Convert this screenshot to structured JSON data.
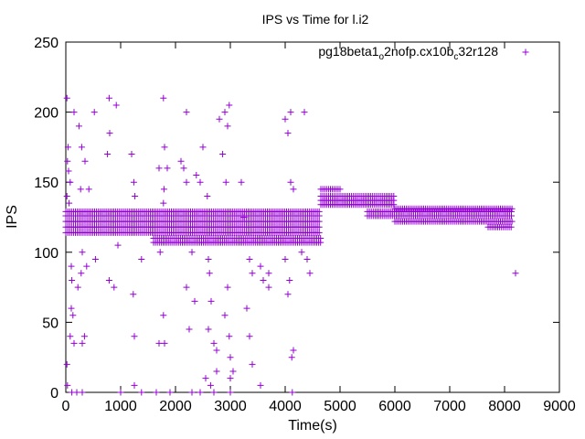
{
  "chart_data": {
    "type": "scatter",
    "title": "IPS vs Time for l.i2",
    "xlabel": "Time(s)",
    "ylabel": "IPS",
    "xlim": [
      0,
      9000
    ],
    "ylim": [
      0,
      250
    ],
    "xticks": [
      0,
      1000,
      2000,
      3000,
      4000,
      5000,
      6000,
      7000,
      8000,
      9000
    ],
    "yticks": [
      0,
      50,
      100,
      150,
      200,
      250
    ],
    "grid": false,
    "legend_position": "top-right",
    "marker": "plus",
    "series": [
      {
        "name_parts": {
          "base": "pg18beta1",
          "sub1": "o",
          "mid": "2nofp.cx10b",
          "sub2": "c",
          "end": "32r128"
        },
        "color": "#9400d3",
        "dense_bands": [
          {
            "x_start": 0,
            "x_end": 4650,
            "y_values": [
              114,
              118,
              122,
              126,
              129
            ]
          },
          {
            "x_start": 1600,
            "x_end": 4650,
            "y_values": [
              107,
              110
            ]
          },
          {
            "x_start": 4650,
            "x_end": 5000,
            "y_values": [
              140,
              145
            ]
          },
          {
            "x_start": 4650,
            "x_end": 6000,
            "y_values": [
              134,
              137
            ]
          },
          {
            "x_start": 5000,
            "x_end": 6000,
            "y_values": [
              140
            ]
          },
          {
            "x_start": 5500,
            "x_end": 8150,
            "y_values": [
              126,
              129
            ]
          },
          {
            "x_start": 6000,
            "x_end": 8150,
            "y_values": [
              122,
              131
            ]
          },
          {
            "x_start": 7700,
            "x_end": 8150,
            "y_values": [
              118
            ]
          }
        ],
        "points": [
          [
            20,
            210
          ],
          [
            40,
            175
          ],
          [
            30,
            165
          ],
          [
            50,
            158
          ],
          [
            80,
            150
          ],
          [
            20,
            140
          ],
          [
            60,
            135
          ],
          [
            100,
            90
          ],
          [
            110,
            80
          ],
          [
            100,
            60
          ],
          [
            130,
            55
          ],
          [
            80,
            40
          ],
          [
            150,
            35
          ],
          [
            20,
            20
          ],
          [
            30,
            5
          ],
          [
            110,
            0
          ],
          [
            200,
            0
          ],
          [
            300,
            0
          ],
          [
            150,
            200
          ],
          [
            240,
            190
          ],
          [
            290,
            175
          ],
          [
            350,
            165
          ],
          [
            270,
            145
          ],
          [
            420,
            145
          ],
          [
            300,
            100
          ],
          [
            220,
            75
          ],
          [
            280,
            85
          ],
          [
            380,
            90
          ],
          [
            340,
            40
          ],
          [
            300,
            35
          ],
          [
            520,
            200
          ],
          [
            540,
            95
          ],
          [
            790,
            210
          ],
          [
            800,
            185
          ],
          [
            920,
            205
          ],
          [
            760,
            170
          ],
          [
            950,
            105
          ],
          [
            790,
            80
          ],
          [
            880,
            75
          ],
          [
            1000,
            0
          ],
          [
            1200,
            170
          ],
          [
            1240,
            150
          ],
          [
            1260,
            140
          ],
          [
            1230,
            70
          ],
          [
            1250,
            40
          ],
          [
            1250,
            5
          ],
          [
            1380,
            95
          ],
          [
            1380,
            0
          ],
          [
            1700,
            160
          ],
          [
            1780,
            210
          ],
          [
            1800,
            175
          ],
          [
            1850,
            160
          ],
          [
            1790,
            145
          ],
          [
            1780,
            135
          ],
          [
            1720,
            100
          ],
          [
            1780,
            55
          ],
          [
            1700,
            35
          ],
          [
            1800,
            35
          ],
          [
            1650,
            0
          ],
          [
            1900,
            0
          ],
          [
            2100,
            165
          ],
          [
            2150,
            160
          ],
          [
            2200,
            200
          ],
          [
            2200,
            150
          ],
          [
            2300,
            100
          ],
          [
            2200,
            75
          ],
          [
            2250,
            45
          ],
          [
            2350,
            65
          ],
          [
            2300,
            0
          ],
          [
            2450,
            0
          ],
          [
            2380,
            155
          ],
          [
            2500,
            175
          ],
          [
            2450,
            150
          ],
          [
            2580,
            140
          ],
          [
            2600,
            95
          ],
          [
            2620,
            85
          ],
          [
            2650,
            65
          ],
          [
            2600,
            45
          ],
          [
            2700,
            35
          ],
          [
            2750,
            15
          ],
          [
            2640,
            5
          ],
          [
            2700,
            0
          ],
          [
            2550,
            10
          ],
          [
            2750,
            30
          ],
          [
            2800,
            195
          ],
          [
            2900,
            200
          ],
          [
            2950,
            190
          ],
          [
            2980,
            205
          ],
          [
            2860,
            170
          ],
          [
            2920,
            150
          ],
          [
            2950,
            75
          ],
          [
            2900,
            55
          ],
          [
            2980,
            40
          ],
          [
            3000,
            25
          ],
          [
            3050,
            15
          ],
          [
            3000,
            10
          ],
          [
            3000,
            0
          ],
          [
            3200,
            150
          ],
          [
            3250,
            125
          ],
          [
            3350,
            95
          ],
          [
            3400,
            85
          ],
          [
            3300,
            60
          ],
          [
            3350,
            40
          ],
          [
            3400,
            20
          ],
          [
            3550,
            90
          ],
          [
            3600,
            80
          ],
          [
            3550,
            5
          ],
          [
            3700,
            85
          ],
          [
            3700,
            75
          ],
          [
            4000,
            195
          ],
          [
            4100,
            200
          ],
          [
            4050,
            185
          ],
          [
            4100,
            150
          ],
          [
            4150,
            145
          ],
          [
            4000,
            95
          ],
          [
            4080,
            80
          ],
          [
            4050,
            70
          ],
          [
            4150,
            30
          ],
          [
            4120,
            25
          ],
          [
            4130,
            0
          ],
          [
            4350,
            200
          ],
          [
            4300,
            100
          ],
          [
            4400,
            95
          ],
          [
            4450,
            85
          ],
          [
            8200,
            85
          ]
        ]
      }
    ]
  }
}
